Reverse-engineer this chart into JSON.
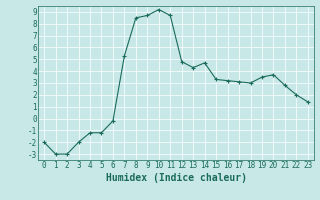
{
  "x": [
    0,
    1,
    2,
    3,
    4,
    5,
    6,
    7,
    8,
    9,
    10,
    11,
    12,
    13,
    14,
    15,
    16,
    17,
    18,
    19,
    20,
    21,
    22,
    23
  ],
  "y": [
    -2,
    -3,
    -3,
    -2,
    -1.2,
    -1.2,
    -0.2,
    5.3,
    8.5,
    8.7,
    9.2,
    8.7,
    4.8,
    4.3,
    4.7,
    3.3,
    3.2,
    3.1,
    3.0,
    3.5,
    3.7,
    2.8,
    2.0,
    1.4
  ],
  "line_color": "#1a6b5a",
  "marker": "+",
  "bg_color": "#c8e8e8",
  "grid_color": "#ffffff",
  "xlabel": "Humidex (Indice chaleur)",
  "xlim": [
    -0.5,
    23.5
  ],
  "ylim": [
    -3.5,
    9.5
  ],
  "yticks": [
    -3,
    -2,
    -1,
    0,
    1,
    2,
    3,
    4,
    5,
    6,
    7,
    8,
    9
  ],
  "xticks": [
    0,
    1,
    2,
    3,
    4,
    5,
    6,
    7,
    8,
    9,
    10,
    11,
    12,
    13,
    14,
    15,
    16,
    17,
    18,
    19,
    20,
    21,
    22,
    23
  ],
  "font_color": "#1a6b5a",
  "tick_fontsize": 5.5,
  "label_fontsize": 7.0
}
